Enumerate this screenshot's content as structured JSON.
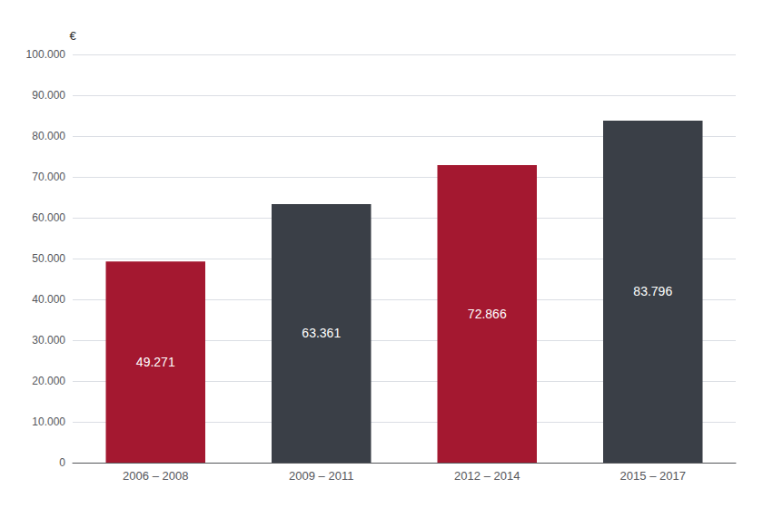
{
  "chart_data": {
    "type": "bar",
    "categories": [
      "2006 – 2008",
      "2009 – 2011",
      "2012 – 2014",
      "2015 – 2017"
    ],
    "values": [
      49271,
      63361,
      72866,
      83796
    ],
    "value_labels": [
      "49.271",
      "63.361",
      "72.866",
      "83.796"
    ],
    "colors": [
      "#a41830",
      "#3a3f47",
      "#a41830",
      "#3a3f47"
    ],
    "ylabel": "€",
    "ylim": [
      0,
      100000
    ],
    "yticks": [
      0,
      {
        "value": 10000,
        "label": "10.000"
      },
      {
        "value": 20000,
        "label": "20.000"
      },
      {
        "value": 30000,
        "label": "30.000"
      },
      {
        "value": 40000,
        "label": "40.000"
      },
      {
        "value": 50000,
        "label": "50.000"
      },
      {
        "value": 60000,
        "label": "60.000"
      },
      {
        "value": 70000,
        "label": "70.000"
      },
      {
        "value": 80000,
        "label": "80.000"
      },
      {
        "value": 90000,
        "label": "90.000"
      },
      {
        "value": 100000,
        "label": "100.000"
      }
    ],
    "grid": true,
    "data_labels": true
  }
}
